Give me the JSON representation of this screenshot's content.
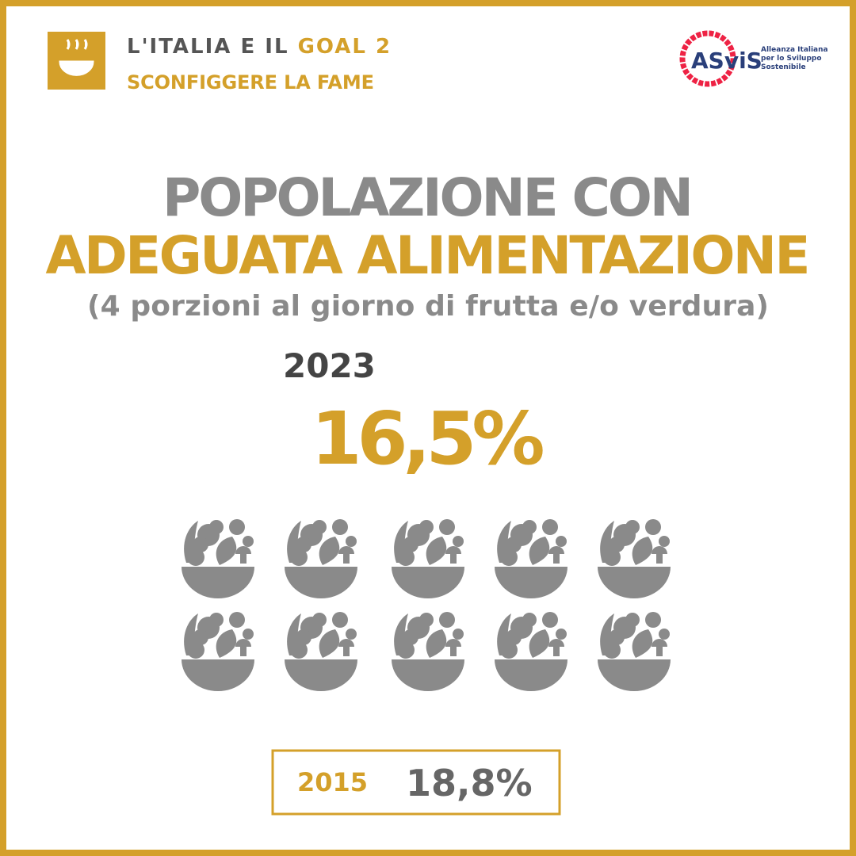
{
  "header": {
    "title_part1": "L'ITALIA E IL ",
    "title_part2": "GOAL 2",
    "subtitle": "SCONFIGGERE LA FAME"
  },
  "logo": {
    "name": "ASviS",
    "tagline_1": "Alleanza Italiana",
    "tagline_2": "per lo Sviluppo",
    "tagline_3": "Sostenibile"
  },
  "heading": {
    "line1": "POPOLAZIONE CON",
    "line2": "ADEGUATA ALIMENTAZIONE",
    "line3": "(4 porzioni al giorno di frutta e/o verdura)"
  },
  "current": {
    "year": "2023",
    "value": 16.5,
    "label": "16,5%"
  },
  "baseline": {
    "year": "2015",
    "label": "18,8%"
  }
}
